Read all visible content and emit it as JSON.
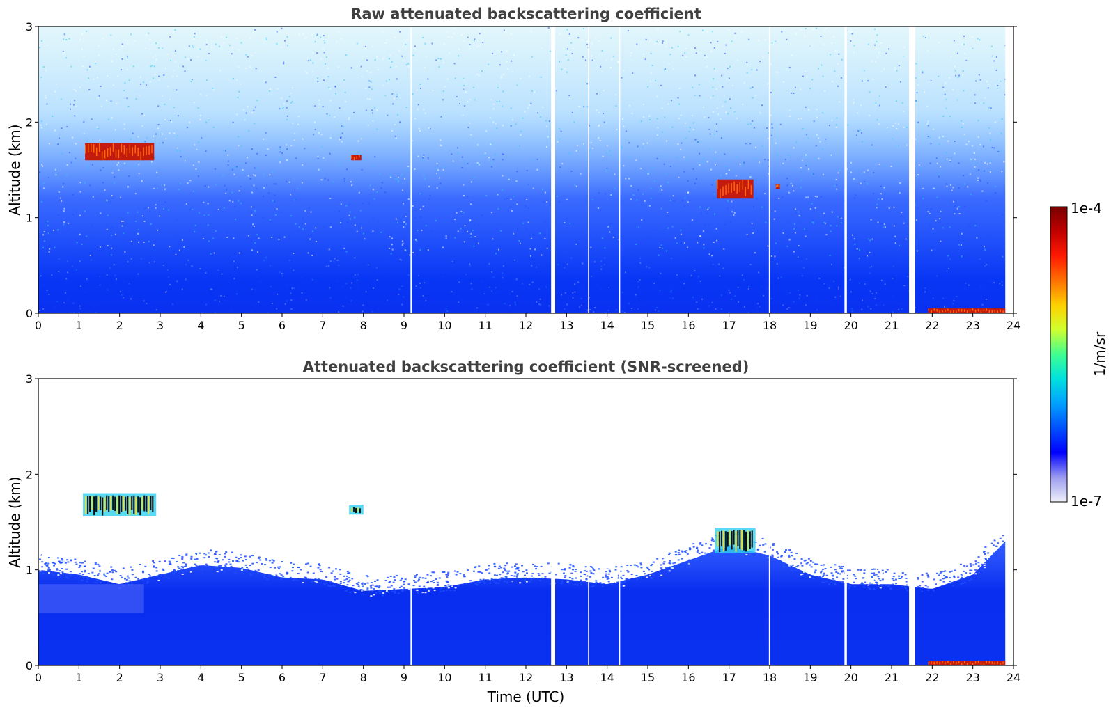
{
  "chart_data": [
    {
      "type": "heatmap",
      "panel": "top",
      "title": "Raw attenuated backscattering coefficient",
      "xlabel": "",
      "ylabel": "Altitude (km)",
      "xlim": [
        0,
        24
      ],
      "ylim": [
        0,
        3
      ],
      "xticks": [
        0,
        1,
        2,
        3,
        4,
        5,
        6,
        7,
        8,
        9,
        10,
        11,
        12,
        13,
        14,
        15,
        16,
        17,
        18,
        19,
        20,
        21,
        22,
        23,
        24
      ],
      "yticks": [
        0,
        1,
        2,
        3
      ],
      "data_gaps_utc": [
        [
          9.16,
          9.19
        ],
        [
          12.62,
          12.72
        ],
        [
          13.53,
          13.56
        ],
        [
          14.29,
          14.32
        ],
        [
          17.98,
          18.01
        ],
        [
          19.84,
          19.9
        ],
        [
          21.43,
          21.58
        ],
        [
          23.8,
          24.0
        ]
      ],
      "features": [
        {
          "name": "cloud layer",
          "time_utc": [
            1.15,
            2.85
          ],
          "altitude_km": [
            1.6,
            1.78
          ],
          "level": "high"
        },
        {
          "name": "cloud",
          "time_utc": [
            7.7,
            7.95
          ],
          "altitude_km": [
            1.6,
            1.66
          ],
          "level": "high"
        },
        {
          "name": "cloud",
          "time_utc": [
            16.7,
            17.6
          ],
          "altitude_km": [
            1.2,
            1.4
          ],
          "level": "high"
        },
        {
          "name": "cloud",
          "time_utc": [
            18.15,
            18.25
          ],
          "altitude_km": [
            1.3,
            1.35
          ],
          "level": "high"
        },
        {
          "name": "near-surface layer",
          "time_utc": [
            21.9,
            23.8
          ],
          "altitude_km": [
            0.0,
            0.05
          ],
          "level": "high"
        }
      ]
    },
    {
      "type": "heatmap",
      "panel": "bottom",
      "title": "Attenuated backscattering coefficient (SNR-screened)",
      "xlabel": "Time (UTC)",
      "ylabel": "Altitude (km)",
      "xlim": [
        0,
        24
      ],
      "ylim": [
        0,
        3
      ],
      "xticks": [
        0,
        1,
        2,
        3,
        4,
        5,
        6,
        7,
        8,
        9,
        10,
        11,
        12,
        13,
        14,
        15,
        16,
        17,
        18,
        19,
        20,
        21,
        22,
        23,
        24
      ],
      "yticks": [
        0,
        1,
        2,
        3
      ],
      "boundary_layer_top_km": {
        "time_utc": [
          0,
          1,
          2,
          3,
          4,
          5,
          6,
          7,
          8,
          9,
          10,
          11,
          12,
          13,
          14,
          15,
          16,
          17,
          18,
          19,
          20,
          21,
          22,
          23,
          23.8
        ],
        "altitude_km": [
          1.0,
          0.95,
          0.85,
          0.95,
          1.05,
          1.02,
          0.92,
          0.9,
          0.78,
          0.8,
          0.82,
          0.9,
          0.92,
          0.9,
          0.85,
          0.95,
          1.1,
          1.25,
          1.15,
          0.95,
          0.85,
          0.85,
          0.8,
          0.95,
          1.3
        ]
      },
      "features": [
        {
          "name": "cloud layer",
          "time_utc": [
            1.15,
            2.85
          ],
          "altitude_km": [
            1.58,
            1.78
          ],
          "level": "saturated"
        },
        {
          "name": "cloud",
          "time_utc": [
            7.7,
            7.95
          ],
          "altitude_km": [
            1.6,
            1.66
          ],
          "level": "saturated"
        },
        {
          "name": "cloud",
          "time_utc": [
            16.7,
            17.6
          ],
          "altitude_km": [
            1.2,
            1.42
          ],
          "level": "saturated"
        },
        {
          "name": "near-surface layer",
          "time_utc": [
            21.9,
            23.8
          ],
          "altitude_km": [
            0.0,
            0.05
          ],
          "level": "high"
        }
      ]
    }
  ],
  "colorbar": {
    "max_label": "1e-4",
    "min_label": "1e-7",
    "unit_label": "1/m/sr",
    "scale": "log",
    "range": [
      1e-07,
      0.0001
    ],
    "stops": [
      "#f0f0fa",
      "#9b9bf0",
      "#0000ff",
      "#0050ff",
      "#00a0ff",
      "#00e0e0",
      "#40ff90",
      "#d0ff30",
      "#ffd000",
      "#ff7000",
      "#ff1a00",
      "#c00000",
      "#7a0000"
    ]
  },
  "colors": {
    "background_blue": "#0a2ef0",
    "sparse_blue": "#1f4dff",
    "noise_cyan": "#34c8f0",
    "cloud_red": "#c41a10",
    "cloud_dark": "#101010"
  }
}
